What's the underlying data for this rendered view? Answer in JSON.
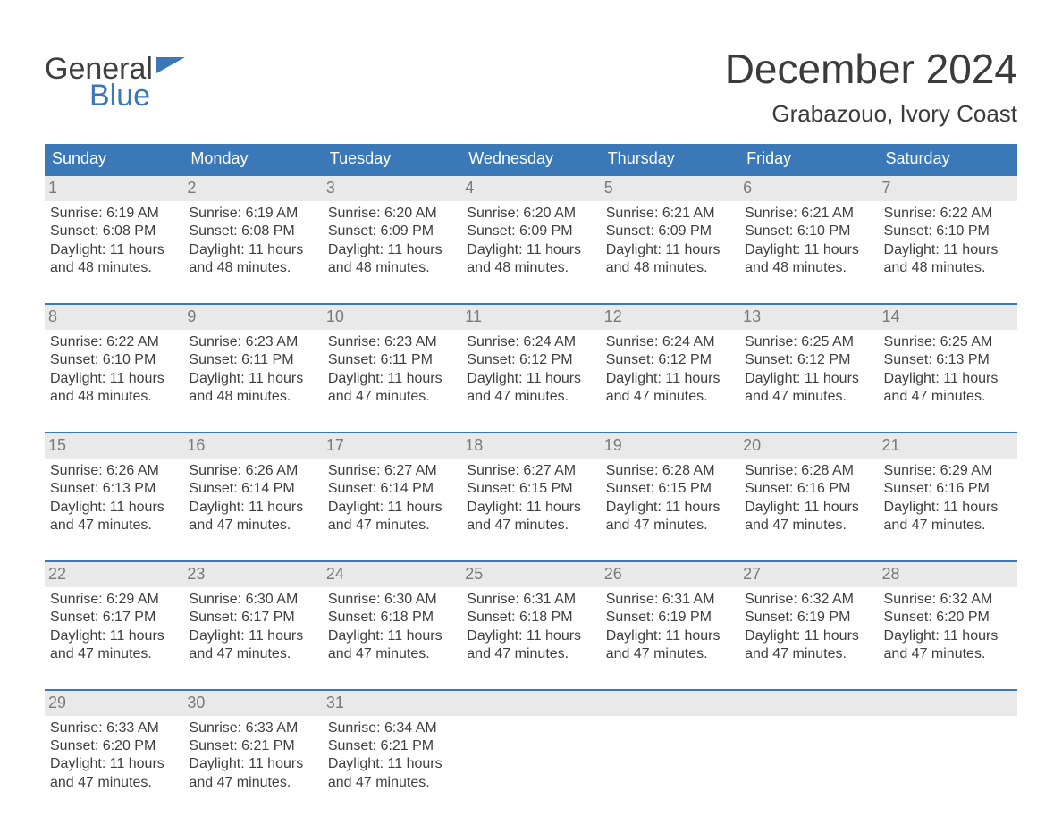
{
  "logo": {
    "word1": "General",
    "word2": "Blue"
  },
  "title": "December 2024",
  "location": "Grabazouo, Ivory Coast",
  "colors": {
    "brand_blue": "#3a78b8",
    "header_bg": "#3a78b8",
    "header_text": "#ffffff",
    "daynum_bg": "#e9e9e9",
    "daynum_text": "#7a7a7a",
    "body_text": "#3f3f3f",
    "page_bg": "#ffffff"
  },
  "labels": {
    "sunrise": "Sunrise",
    "sunset": "Sunset",
    "daylight": "Daylight"
  },
  "day_names": [
    "Sunday",
    "Monday",
    "Tuesday",
    "Wednesday",
    "Thursday",
    "Friday",
    "Saturday"
  ],
  "weeks": [
    [
      {
        "d": "1",
        "sr": "6:19 AM",
        "ss": "6:08 PM",
        "dl": "11 hours and 48 minutes."
      },
      {
        "d": "2",
        "sr": "6:19 AM",
        "ss": "6:08 PM",
        "dl": "11 hours and 48 minutes."
      },
      {
        "d": "3",
        "sr": "6:20 AM",
        "ss": "6:09 PM",
        "dl": "11 hours and 48 minutes."
      },
      {
        "d": "4",
        "sr": "6:20 AM",
        "ss": "6:09 PM",
        "dl": "11 hours and 48 minutes."
      },
      {
        "d": "5",
        "sr": "6:21 AM",
        "ss": "6:09 PM",
        "dl": "11 hours and 48 minutes."
      },
      {
        "d": "6",
        "sr": "6:21 AM",
        "ss": "6:10 PM",
        "dl": "11 hours and 48 minutes."
      },
      {
        "d": "7",
        "sr": "6:22 AM",
        "ss": "6:10 PM",
        "dl": "11 hours and 48 minutes."
      }
    ],
    [
      {
        "d": "8",
        "sr": "6:22 AM",
        "ss": "6:10 PM",
        "dl": "11 hours and 48 minutes."
      },
      {
        "d": "9",
        "sr": "6:23 AM",
        "ss": "6:11 PM",
        "dl": "11 hours and 48 minutes."
      },
      {
        "d": "10",
        "sr": "6:23 AM",
        "ss": "6:11 PM",
        "dl": "11 hours and 47 minutes."
      },
      {
        "d": "11",
        "sr": "6:24 AM",
        "ss": "6:12 PM",
        "dl": "11 hours and 47 minutes."
      },
      {
        "d": "12",
        "sr": "6:24 AM",
        "ss": "6:12 PM",
        "dl": "11 hours and 47 minutes."
      },
      {
        "d": "13",
        "sr": "6:25 AM",
        "ss": "6:12 PM",
        "dl": "11 hours and 47 minutes."
      },
      {
        "d": "14",
        "sr": "6:25 AM",
        "ss": "6:13 PM",
        "dl": "11 hours and 47 minutes."
      }
    ],
    [
      {
        "d": "15",
        "sr": "6:26 AM",
        "ss": "6:13 PM",
        "dl": "11 hours and 47 minutes."
      },
      {
        "d": "16",
        "sr": "6:26 AM",
        "ss": "6:14 PM",
        "dl": "11 hours and 47 minutes."
      },
      {
        "d": "17",
        "sr": "6:27 AM",
        "ss": "6:14 PM",
        "dl": "11 hours and 47 minutes."
      },
      {
        "d": "18",
        "sr": "6:27 AM",
        "ss": "6:15 PM",
        "dl": "11 hours and 47 minutes."
      },
      {
        "d": "19",
        "sr": "6:28 AM",
        "ss": "6:15 PM",
        "dl": "11 hours and 47 minutes."
      },
      {
        "d": "20",
        "sr": "6:28 AM",
        "ss": "6:16 PM",
        "dl": "11 hours and 47 minutes."
      },
      {
        "d": "21",
        "sr": "6:29 AM",
        "ss": "6:16 PM",
        "dl": "11 hours and 47 minutes."
      }
    ],
    [
      {
        "d": "22",
        "sr": "6:29 AM",
        "ss": "6:17 PM",
        "dl": "11 hours and 47 minutes."
      },
      {
        "d": "23",
        "sr": "6:30 AM",
        "ss": "6:17 PM",
        "dl": "11 hours and 47 minutes."
      },
      {
        "d": "24",
        "sr": "6:30 AM",
        "ss": "6:18 PM",
        "dl": "11 hours and 47 minutes."
      },
      {
        "d": "25",
        "sr": "6:31 AM",
        "ss": "6:18 PM",
        "dl": "11 hours and 47 minutes."
      },
      {
        "d": "26",
        "sr": "6:31 AM",
        "ss": "6:19 PM",
        "dl": "11 hours and 47 minutes."
      },
      {
        "d": "27",
        "sr": "6:32 AM",
        "ss": "6:19 PM",
        "dl": "11 hours and 47 minutes."
      },
      {
        "d": "28",
        "sr": "6:32 AM",
        "ss": "6:20 PM",
        "dl": "11 hours and 47 minutes."
      }
    ],
    [
      {
        "d": "29",
        "sr": "6:33 AM",
        "ss": "6:20 PM",
        "dl": "11 hours and 47 minutes."
      },
      {
        "d": "30",
        "sr": "6:33 AM",
        "ss": "6:21 PM",
        "dl": "11 hours and 47 minutes."
      },
      {
        "d": "31",
        "sr": "6:34 AM",
        "ss": "6:21 PM",
        "dl": "11 hours and 47 minutes."
      },
      null,
      null,
      null,
      null
    ]
  ]
}
